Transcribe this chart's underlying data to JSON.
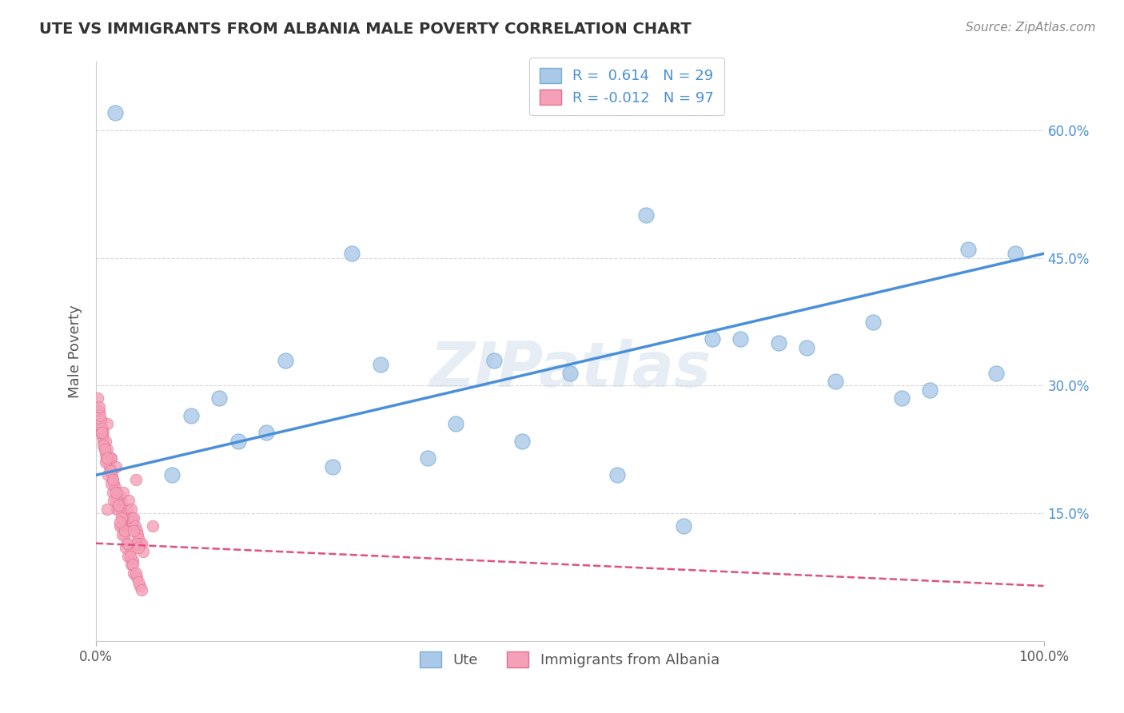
{
  "title": "UTE VS IMMIGRANTS FROM ALBANIA MALE POVERTY CORRELATION CHART",
  "source_text": "Source: ZipAtlas.com",
  "ylabel": "Male Poverty",
  "xlim": [
    0,
    1
  ],
  "ylim": [
    0.0,
    0.68
  ],
  "xticklabels": [
    "0.0%",
    "100.0%"
  ],
  "ytick_positions": [
    0.15,
    0.3,
    0.45,
    0.6
  ],
  "ytick_labels": [
    "15.0%",
    "30.0%",
    "45.0%",
    "60.0%"
  ],
  "ute_color": "#aac9e8",
  "ute_edge_color": "#7aafd4",
  "albania_color": "#f5a0b8",
  "albania_edge_color": "#e07090",
  "trend_ute_color": "#4a90d9",
  "trend_albania_color": "#e05080",
  "grid_color": "#d8d8d8",
  "background_color": "#ffffff",
  "watermark": "ZIPatlas",
  "legend_R_ute": "0.614",
  "legend_N_ute": "29",
  "legend_R_albania": "-0.012",
  "legend_N_albania": "97",
  "trend_ute_x0": 0.0,
  "trend_ute_y0": 0.195,
  "trend_ute_x1": 1.0,
  "trend_ute_y1": 0.455,
  "trend_alb_x0": 0.0,
  "trend_alb_y0": 0.115,
  "trend_alb_x1": 1.0,
  "trend_alb_y1": 0.065,
  "ute_x": [
    0.02,
    0.13,
    0.27,
    0.42,
    0.1,
    0.18,
    0.08,
    0.2,
    0.35,
    0.5,
    0.55,
    0.62,
    0.68,
    0.72,
    0.78,
    0.82,
    0.88,
    0.92,
    0.97,
    0.3,
    0.38,
    0.45,
    0.58,
    0.65,
    0.75,
    0.85,
    0.95,
    0.15,
    0.25
  ],
  "ute_y": [
    0.62,
    0.285,
    0.455,
    0.33,
    0.265,
    0.245,
    0.195,
    0.33,
    0.215,
    0.315,
    0.195,
    0.135,
    0.355,
    0.35,
    0.305,
    0.375,
    0.295,
    0.46,
    0.455,
    0.325,
    0.255,
    0.235,
    0.5,
    0.355,
    0.345,
    0.285,
    0.315,
    0.235,
    0.205
  ],
  "albania_x": [
    0.004,
    0.006,
    0.007,
    0.008,
    0.009,
    0.01,
    0.011,
    0.012,
    0.013,
    0.014,
    0.015,
    0.016,
    0.017,
    0.018,
    0.019,
    0.02,
    0.021,
    0.022,
    0.023,
    0.024,
    0.025,
    0.026,
    0.027,
    0.028,
    0.029,
    0.03,
    0.031,
    0.032,
    0.033,
    0.034,
    0.035,
    0.036,
    0.037,
    0.038,
    0.039,
    0.04,
    0.041,
    0.042,
    0.043,
    0.044,
    0.045,
    0.046,
    0.048,
    0.05,
    0.003,
    0.005,
    0.008,
    0.01,
    0.012,
    0.015,
    0.018,
    0.021,
    0.024,
    0.027,
    0.03,
    0.033,
    0.036,
    0.039,
    0.042,
    0.045,
    0.002,
    0.004,
    0.006,
    0.008,
    0.01,
    0.013,
    0.016,
    0.019,
    0.022,
    0.025,
    0.028,
    0.031,
    0.034,
    0.037,
    0.04,
    0.043,
    0.046,
    0.003,
    0.006,
    0.009,
    0.012,
    0.015,
    0.018,
    0.021,
    0.024,
    0.027,
    0.03,
    0.033,
    0.036,
    0.039,
    0.042,
    0.045,
    0.048,
    0.012,
    0.025,
    0.04,
    0.06
  ],
  "albania_y": [
    0.255,
    0.245,
    0.24,
    0.235,
    0.225,
    0.22,
    0.215,
    0.255,
    0.21,
    0.205,
    0.2,
    0.215,
    0.195,
    0.19,
    0.185,
    0.18,
    0.205,
    0.175,
    0.17,
    0.165,
    0.17,
    0.165,
    0.16,
    0.155,
    0.175,
    0.15,
    0.145,
    0.14,
    0.155,
    0.135,
    0.165,
    0.145,
    0.155,
    0.145,
    0.14,
    0.145,
    0.135,
    0.19,
    0.13,
    0.125,
    0.12,
    0.115,
    0.115,
    0.105,
    0.27,
    0.26,
    0.245,
    0.235,
    0.225,
    0.215,
    0.175,
    0.165,
    0.155,
    0.135,
    0.125,
    0.115,
    0.105,
    0.095,
    0.115,
    0.11,
    0.285,
    0.265,
    0.25,
    0.23,
    0.21,
    0.195,
    0.185,
    0.165,
    0.155,
    0.135,
    0.125,
    0.11,
    0.1,
    0.09,
    0.08,
    0.075,
    0.065,
    0.275,
    0.245,
    0.225,
    0.215,
    0.2,
    0.19,
    0.175,
    0.16,
    0.145,
    0.13,
    0.115,
    0.1,
    0.09,
    0.08,
    0.07,
    0.06,
    0.155,
    0.14,
    0.13,
    0.135
  ]
}
